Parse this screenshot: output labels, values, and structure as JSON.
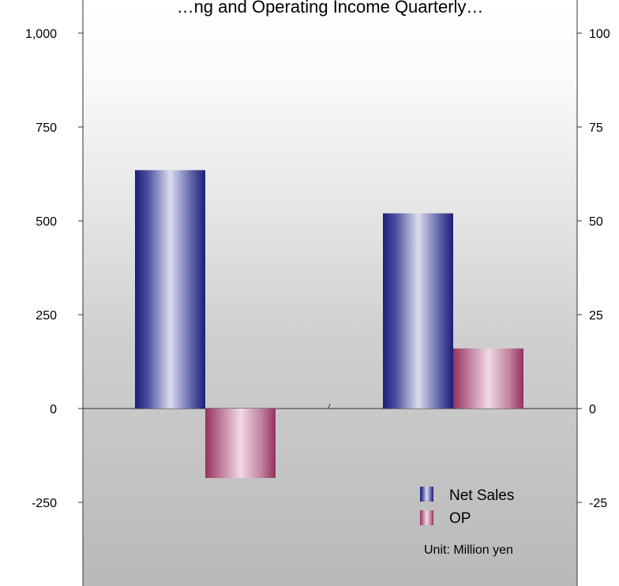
{
  "chart_data": {
    "type": "bar",
    "title": "…ng and Operating Income Quarterly…",
    "categories": [
      "",
      ""
    ],
    "series": [
      {
        "name": "Net Sales",
        "axis": "left",
        "values": [
          635,
          520
        ],
        "color": "#1f237a"
      },
      {
        "name": "OP",
        "axis": "right",
        "values": [
          -18.5,
          16
        ],
        "color": "#9b3a68"
      }
    ],
    "y_left": {
      "ylim": [
        -400,
        1000
      ],
      "ticks": [
        1000,
        750,
        500,
        250,
        0,
        -250
      ],
      "tick_labels": [
        "1,000",
        "750",
        "500",
        "250",
        "0",
        "-250"
      ]
    },
    "y_right": {
      "ylim": [
        -40,
        100
      ],
      "ticks": [
        100,
        75,
        50,
        25,
        0,
        -25
      ],
      "tick_labels": [
        "100",
        "75",
        "50",
        "25",
        "0",
        "-25"
      ]
    },
    "legend": {
      "position": "bottom-right",
      "entries": [
        "Net Sales",
        "OP"
      ]
    },
    "unit_note": "Unit: Million yen",
    "grid": false
  }
}
